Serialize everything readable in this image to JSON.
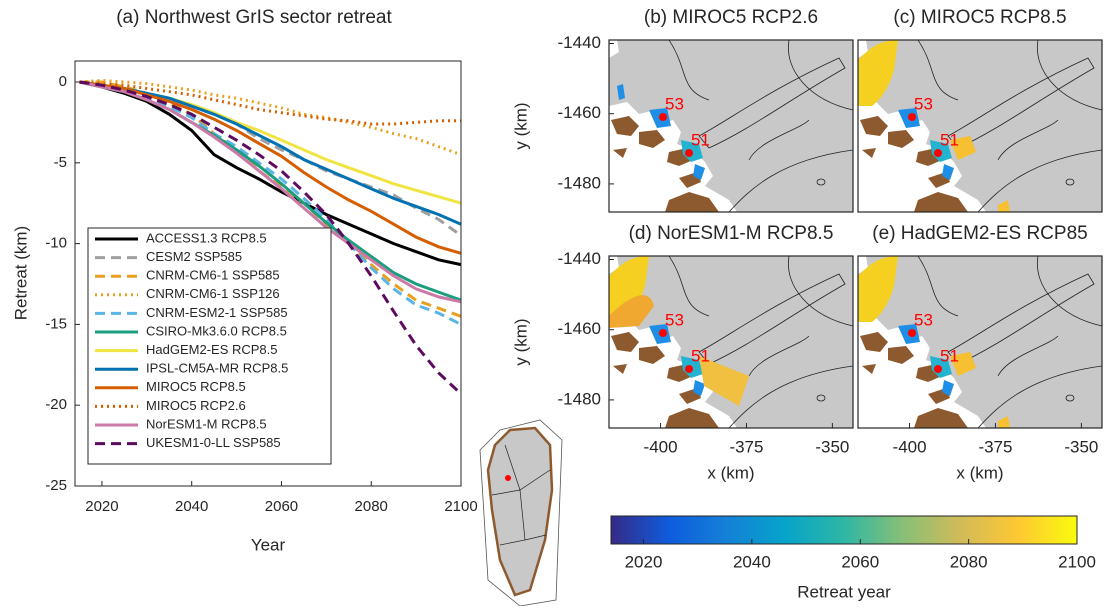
{
  "chart_data": [
    {
      "type": "line",
      "title": "(a) Northwest GrIS sector retreat",
      "xlabel": "Year",
      "ylabel": "Retreat (km)",
      "xlim": [
        2014,
        2100
      ],
      "ylim": [
        -25,
        1.3
      ],
      "xticks": [
        2020,
        2040,
        2060,
        2080,
        2100
      ],
      "yticks": [
        0,
        -5,
        -10,
        -15,
        -20,
        -25
      ],
      "x": [
        2015,
        2020,
        2025,
        2030,
        2035,
        2040,
        2045,
        2050,
        2055,
        2060,
        2065,
        2070,
        2075,
        2080,
        2085,
        2090,
        2095,
        2100
      ],
      "series": [
        {
          "name": "ACCESS1.3 RCP8.5",
          "color": "#000000",
          "style": "solid",
          "values": [
            0,
            -0.3,
            -0.7,
            -1.2,
            -2,
            -3,
            -4.5,
            -5.3,
            -6,
            -6.8,
            -7.5,
            -8.2,
            -8.8,
            -9.4,
            -10,
            -10.5,
            -11,
            -11.3
          ]
        },
        {
          "name": "CESM2 SSP585",
          "color": "#a0a0a0",
          "style": "dashed",
          "values": [
            0,
            -0.2,
            -0.4,
            -0.7,
            -1,
            -1.5,
            -2,
            -2.6,
            -3.5,
            -4.2,
            -4.8,
            -5.5,
            -6,
            -6.5,
            -7,
            -7.8,
            -8.5,
            -9.5
          ]
        },
        {
          "name": "CNRM-CM6-1 SSP585",
          "color": "#e8a020",
          "style": "dashed",
          "values": [
            0,
            0,
            -0.3,
            -0.7,
            -1.3,
            -2,
            -3.2,
            -4.2,
            -5.5,
            -6.5,
            -7.5,
            -8.8,
            -10,
            -11.3,
            -12.5,
            -13.5,
            -14,
            -14.5
          ]
        },
        {
          "name": "CNRM-CM6-1 SSP126",
          "color": "#e8a020",
          "style": "dotted",
          "values": [
            0,
            0.1,
            0,
            -0.1,
            -0.3,
            -0.5,
            -0.8,
            -1,
            -1.3,
            -1.6,
            -2,
            -2.2,
            -2.5,
            -2.8,
            -3.2,
            -3.5,
            -4,
            -4.5
          ]
        },
        {
          "name": "CNRM-ESM2-1 SSP585",
          "color": "#5ab4e5",
          "style": "dashed",
          "values": [
            0,
            -0.3,
            -0.6,
            -1,
            -1.5,
            -2.2,
            -3.2,
            -4,
            -5,
            -6,
            -7.2,
            -8.5,
            -10,
            -11.5,
            -12.8,
            -13.8,
            -14.3,
            -15
          ]
        },
        {
          "name": "CSIRO-Mk3.6.0 RCP8.5",
          "color": "#1a9e7e",
          "style": "solid",
          "values": [
            0,
            -0.3,
            -0.6,
            -1.1,
            -1.7,
            -2.5,
            -3.3,
            -4.2,
            -5.2,
            -6.3,
            -7.5,
            -8.7,
            -9.8,
            -10.8,
            -11.8,
            -12.5,
            -13,
            -13.5
          ]
        },
        {
          "name": "HadGEM2-ES RCP8.5",
          "color": "#f0e442",
          "style": "solid",
          "values": [
            0,
            -0.2,
            -0.4,
            -0.7,
            -1,
            -1.4,
            -1.9,
            -2.5,
            -3,
            -3.6,
            -4.2,
            -4.8,
            -5.3,
            -5.8,
            -6.3,
            -6.7,
            -7.1,
            -7.5
          ]
        },
        {
          "name": "IPSL-CM5A-MR RCP8.5",
          "color": "#0072b2",
          "style": "solid",
          "values": [
            0,
            -0.2,
            -0.4,
            -0.7,
            -1,
            -1.5,
            -2,
            -2.6,
            -3.3,
            -4,
            -4.8,
            -5.4,
            -6,
            -6.6,
            -7.2,
            -7.7,
            -8.2,
            -8.8
          ]
        },
        {
          "name": "MIROC5 RCP8.5",
          "color": "#d55e00",
          "style": "solid",
          "values": [
            0,
            -0.2,
            -0.4,
            -0.8,
            -1.2,
            -1.7,
            -2.3,
            -3,
            -3.8,
            -4.6,
            -5.6,
            -6.5,
            -7.3,
            -8,
            -8.8,
            -9.6,
            -10.2,
            -10.6
          ]
        },
        {
          "name": "MIROC5 RCP2.6",
          "color": "#d55e00",
          "style": "dotted",
          "values": [
            0,
            -0.1,
            -0.2,
            -0.4,
            -0.6,
            -0.8,
            -1.1,
            -1.4,
            -1.7,
            -1.9,
            -2.1,
            -2.3,
            -2.4,
            -2.6,
            -2.6,
            -2.5,
            -2.4,
            -2.4
          ]
        },
        {
          "name": "NorESM1-M RCP8.5",
          "color": "#cc79a7",
          "style": "solid",
          "values": [
            0,
            -0.3,
            -0.6,
            -1.1,
            -1.7,
            -2.5,
            -3.4,
            -4.4,
            -5.5,
            -6.6,
            -7.8,
            -9,
            -10,
            -11,
            -12,
            -12.8,
            -13.3,
            -13.6
          ]
        },
        {
          "name": "UKESM1-0-LL SSP585",
          "color": "#5e0a5e",
          "style": "dashed",
          "values": [
            0,
            -0.2,
            -0.5,
            -0.9,
            -1.4,
            -2,
            -2.8,
            -3.6,
            -4.5,
            -5.5,
            -6.8,
            -8.2,
            -10,
            -12,
            -14.2,
            -16.3,
            -18,
            -19.3
          ]
        }
      ]
    },
    {
      "type": "map",
      "title": "(b) MIROC5 RCP2.6",
      "ylabel": "y (km)",
      "ylim": [
        -1488,
        -1439
      ],
      "yticks": [
        -1440,
        -1460,
        -1480
      ],
      "labels": [
        "53",
        "51"
      ],
      "overlay": "none"
    },
    {
      "type": "map",
      "title": "(c) MIROC5 RCP8.5",
      "labels": [
        "53",
        "51"
      ],
      "overlay": "hot"
    },
    {
      "type": "map",
      "title": "(d) NorESM1-M RCP8.5",
      "ylabel": "y (km)",
      "xlabel": "x (km)",
      "ylim": [
        -1488,
        -1439
      ],
      "yticks": [
        -1440,
        -1460,
        -1480
      ],
      "xlim": [
        -415,
        -344
      ],
      "xticks": [
        -400,
        -375,
        -350
      ],
      "labels": [
        "53",
        "51"
      ],
      "overlay": "hotter"
    },
    {
      "type": "map",
      "title": "(e) HadGEM2-ES RCP85",
      "xlabel": "x (km)",
      "xlim": [
        -415,
        -344
      ],
      "xticks": [
        -400,
        -375,
        -350
      ],
      "labels": [
        "53",
        "51"
      ],
      "overlay": "hot"
    },
    {
      "type": "colorbar",
      "xlabel": "Retreat year",
      "xlim": [
        2014,
        2100
      ],
      "xticks": [
        2020,
        2040,
        2060,
        2080,
        2100
      ],
      "colors": [
        "#352a87",
        "#0f5cdd",
        "#1481d6",
        "#06a4ca",
        "#2eb7a4",
        "#87bf77",
        "#d1bb59",
        "#fec832",
        "#f9fb0e"
      ]
    }
  ]
}
